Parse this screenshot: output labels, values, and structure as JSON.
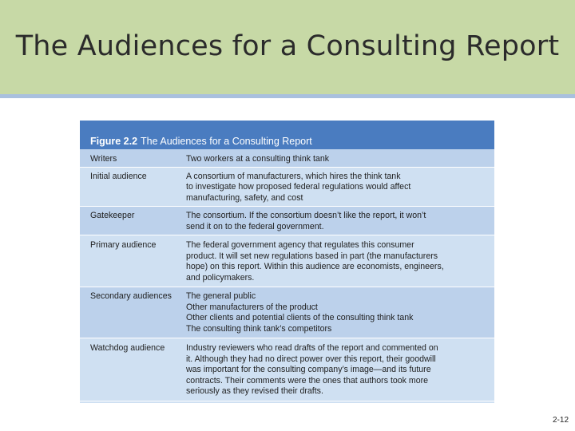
{
  "slide": {
    "title": "The Audiences for a Consulting Report",
    "page_number": "2-12"
  },
  "figure": {
    "label": "Figure 2.2",
    "caption": "The Audiences for a Consulting Report",
    "rows": [
      {
        "label": "Writers",
        "lines": [
          "Two workers at a consulting think tank"
        ]
      },
      {
        "label": "Initial audience",
        "lines": [
          "A consortium of manufacturers, which hires the think tank",
          "to investigate how proposed federal regulations would affect",
          "manufacturing, safety, and cost"
        ]
      },
      {
        "label": "Gatekeeper",
        "lines": [
          "The consortium. If the consortium doesn’t like the report, it won’t",
          "send it on to the federal government."
        ]
      },
      {
        "label": "Primary audience",
        "lines": [
          "The federal government agency that regulates this consumer",
          "product. It will set new regulations based in part (the manufacturers",
          "hope) on this report. Within this audience are economists, engineers,",
          "and policymakers."
        ]
      },
      {
        "label": "Secondary audiences",
        "lines": [
          "The general public",
          "Other manufacturers of the product",
          "Other clients and potential clients of the consulting think tank",
          "The consulting think tank’s competitors"
        ]
      },
      {
        "label": "Watchdog audience",
        "lines": [
          "Industry reviewers who read drafts of the report and commented on",
          "it. Although they had no direct power over this report, their goodwill",
          "was important for the consulting company’s image—and its future",
          "contracts. Their comments were the ones that authors took more",
          "seriously as they revised their drafts."
        ]
      }
    ]
  }
}
